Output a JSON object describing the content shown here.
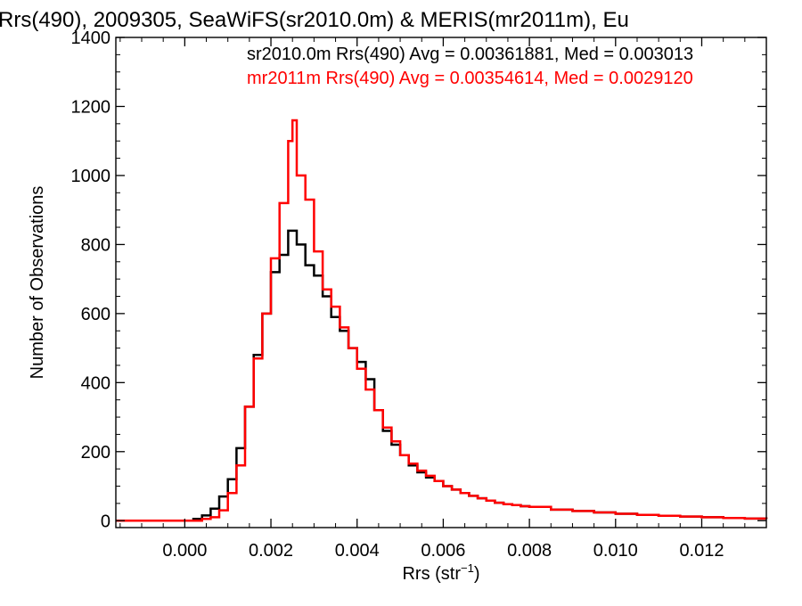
{
  "chart_data": {
    "type": "histogram",
    "title": "Rrs(490), 2009305, SeaWiFS(sr2010.0m) & MERIS(mr2011m), Eu",
    "xlabel": "Rrs (str",
    "xlabel_sup": "−1",
    "xlabel_end": ")",
    "ylabel": "Number of Observations",
    "xlim": [
      -0.0016,
      0.0135
    ],
    "ylim": [
      -20,
      1400
    ],
    "x_ticks": [
      0.0,
      0.002,
      0.004,
      0.006,
      0.008,
      0.01,
      0.012
    ],
    "x_tick_labels": [
      "0.000",
      "0.002",
      "0.004",
      "0.006",
      "0.008",
      "0.010",
      "0.012"
    ],
    "y_ticks": [
      0,
      200,
      400,
      600,
      800,
      1000,
      1200,
      1400
    ],
    "y_tick_labels": [
      "0",
      "200",
      "400",
      "600",
      "800",
      "1000",
      "1200",
      "1400"
    ],
    "grid": false,
    "legend_placement": "top-right",
    "series": [
      {
        "name": "sr2010.0m",
        "color": "#000000",
        "annotation": "sr2010.0m Rrs(490) Avg = 0.00361881, Med = 0.003013",
        "points": [
          [
            -0.0016,
            0
          ],
          [
            0.0,
            0
          ],
          [
            0.0002,
            5
          ],
          [
            0.0004,
            15
          ],
          [
            0.0006,
            35
          ],
          [
            0.0008,
            70
          ],
          [
            0.001,
            120
          ],
          [
            0.0012,
            210
          ],
          [
            0.0014,
            330
          ],
          [
            0.0016,
            480
          ],
          [
            0.0018,
            600
          ],
          [
            0.002,
            720
          ],
          [
            0.0022,
            770
          ],
          [
            0.0024,
            840
          ],
          [
            0.0026,
            800
          ],
          [
            0.0028,
            740
          ],
          [
            0.003,
            710
          ],
          [
            0.0032,
            650
          ],
          [
            0.0034,
            590
          ],
          [
            0.0036,
            550
          ],
          [
            0.0038,
            500
          ],
          [
            0.004,
            460
          ],
          [
            0.0042,
            410
          ],
          [
            0.0044,
            320
          ],
          [
            0.0046,
            260
          ],
          [
            0.0048,
            220
          ],
          [
            0.005,
            190
          ],
          [
            0.0052,
            160
          ],
          [
            0.0054,
            140
          ],
          [
            0.0056,
            125
          ],
          [
            0.0058,
            115
          ],
          [
            0.006,
            100
          ],
          [
            0.0062,
            90
          ],
          [
            0.0064,
            80
          ],
          [
            0.0066,
            72
          ],
          [
            0.0068,
            65
          ],
          [
            0.007,
            58
          ],
          [
            0.0072,
            52
          ],
          [
            0.0074,
            48
          ],
          [
            0.0076,
            45
          ],
          [
            0.0078,
            42
          ],
          [
            0.008,
            40
          ],
          [
            0.0085,
            32
          ],
          [
            0.009,
            28
          ],
          [
            0.0095,
            24
          ],
          [
            0.01,
            20
          ],
          [
            0.0105,
            17
          ],
          [
            0.011,
            14
          ],
          [
            0.0115,
            12
          ],
          [
            0.012,
            10
          ],
          [
            0.0125,
            8
          ],
          [
            0.013,
            6
          ],
          [
            0.0135,
            5
          ]
        ]
      },
      {
        "name": "mr2011m",
        "color": "#ff0000",
        "annotation": "mr2011m Rrs(490) Avg = 0.00354614, Med = 0.0029120",
        "points": [
          [
            -0.0016,
            0
          ],
          [
            0.0,
            0
          ],
          [
            0.0002,
            0
          ],
          [
            0.0004,
            5
          ],
          [
            0.0006,
            10
          ],
          [
            0.0008,
            30
          ],
          [
            0.001,
            80
          ],
          [
            0.0012,
            160
          ],
          [
            0.0014,
            330
          ],
          [
            0.0016,
            470
          ],
          [
            0.0018,
            600
          ],
          [
            0.002,
            760
          ],
          [
            0.0022,
            920
          ],
          [
            0.0024,
            1100
          ],
          [
            0.0025,
            1160
          ],
          [
            0.0026,
            1000
          ],
          [
            0.0028,
            930
          ],
          [
            0.003,
            780
          ],
          [
            0.0032,
            670
          ],
          [
            0.0034,
            620
          ],
          [
            0.0036,
            560
          ],
          [
            0.0038,
            500
          ],
          [
            0.004,
            440
          ],
          [
            0.0042,
            380
          ],
          [
            0.0044,
            320
          ],
          [
            0.0046,
            270
          ],
          [
            0.0048,
            230
          ],
          [
            0.005,
            190
          ],
          [
            0.0052,
            165
          ],
          [
            0.0054,
            145
          ],
          [
            0.0056,
            130
          ],
          [
            0.0058,
            115
          ],
          [
            0.006,
            100
          ],
          [
            0.0062,
            90
          ],
          [
            0.0064,
            80
          ],
          [
            0.0066,
            72
          ],
          [
            0.0068,
            65
          ],
          [
            0.007,
            58
          ],
          [
            0.0072,
            52
          ],
          [
            0.0074,
            48
          ],
          [
            0.0076,
            45
          ],
          [
            0.0078,
            42
          ],
          [
            0.008,
            40
          ],
          [
            0.0085,
            32
          ],
          [
            0.009,
            28
          ],
          [
            0.0095,
            24
          ],
          [
            0.01,
            20
          ],
          [
            0.0105,
            17
          ],
          [
            0.011,
            14
          ],
          [
            0.0115,
            12
          ],
          [
            0.012,
            10
          ],
          [
            0.0125,
            8
          ],
          [
            0.013,
            6
          ],
          [
            0.0135,
            5
          ]
        ]
      }
    ]
  }
}
